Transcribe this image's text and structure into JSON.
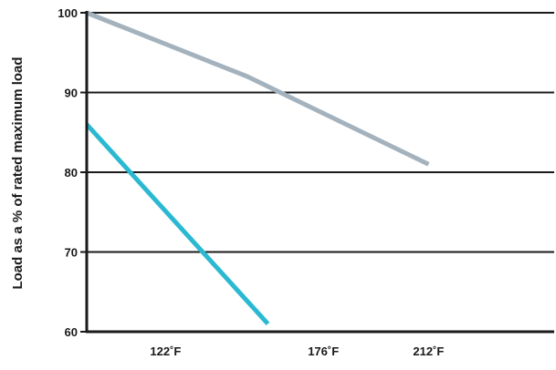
{
  "chart_data": {
    "type": "line",
    "title": "",
    "xlabel": "",
    "ylabel": "Load as a % of rated maximum load",
    "x_tick_labels": [
      "122˚F",
      "176˚F",
      "212˚F"
    ],
    "x_tick_values": [
      122,
      176,
      212
    ],
    "xlim": [
      95,
      255
    ],
    "ylim": [
      60,
      100
    ],
    "yticks": [
      60,
      70,
      80,
      90,
      100
    ],
    "grid": "horizontal",
    "legend": "none",
    "series": [
      {
        "color": "#a3b2bd",
        "points": [
          [
            95,
            100
          ],
          [
            150,
            92
          ],
          [
            212,
            81
          ]
        ]
      },
      {
        "color": "#2ab9d1",
        "points": [
          [
            95,
            86
          ],
          [
            157,
            61
          ]
        ]
      }
    ]
  }
}
